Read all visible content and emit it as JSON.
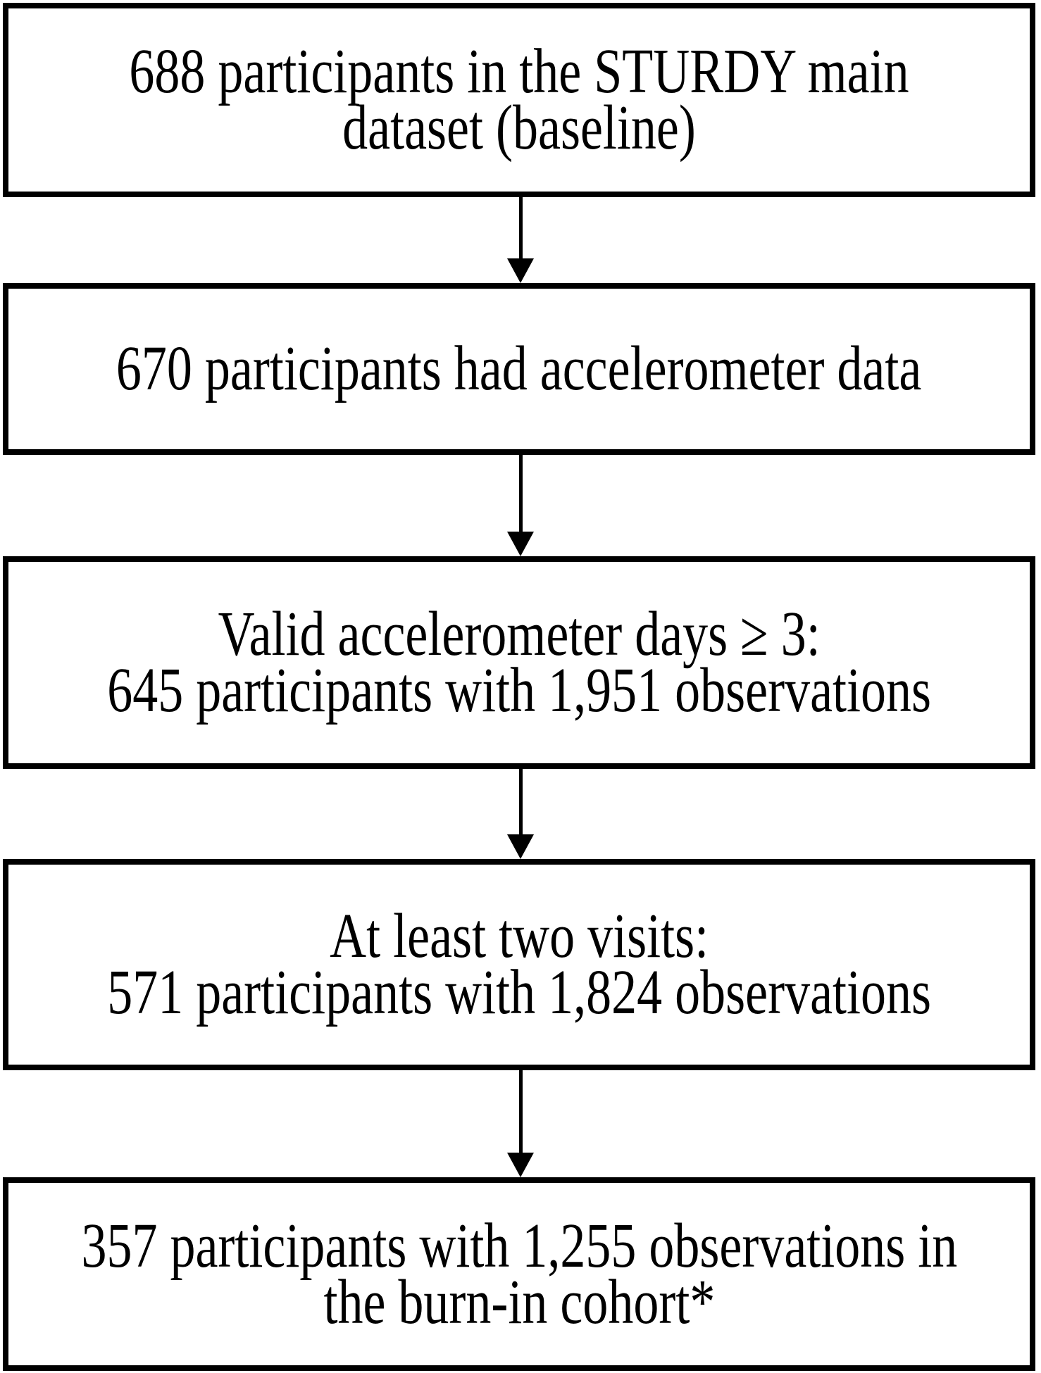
{
  "flowchart": {
    "description": "participant-flow-diagram",
    "boxes": [
      {
        "lines": [
          "688 participants in the STURDY main",
          "dataset (baseline)"
        ]
      },
      {
        "lines": [
          "670 participants had accelerometer data"
        ]
      },
      {
        "lines": [
          "Valid accelerometer days ≥ 3:",
          "645 participants with 1,951 observations"
        ]
      },
      {
        "lines": [
          "At least two visits:",
          "571 participants with 1,824 observations"
        ]
      },
      {
        "lines": [
          "357 participants with 1,255 observations in",
          "the burn-in cohort*"
        ]
      }
    ],
    "connectors": [
      {
        "from": 1,
        "to": 2,
        "type": "arrow-down"
      },
      {
        "from": 2,
        "to": 3,
        "type": "arrow-down"
      },
      {
        "from": 3,
        "to": 4,
        "type": "arrow-down"
      },
      {
        "from": 4,
        "to": 5,
        "type": "arrow-down"
      }
    ],
    "colors": {
      "background": "#ffffff",
      "box_border": "#000000",
      "text": "#000000",
      "arrow": "#000000"
    }
  }
}
